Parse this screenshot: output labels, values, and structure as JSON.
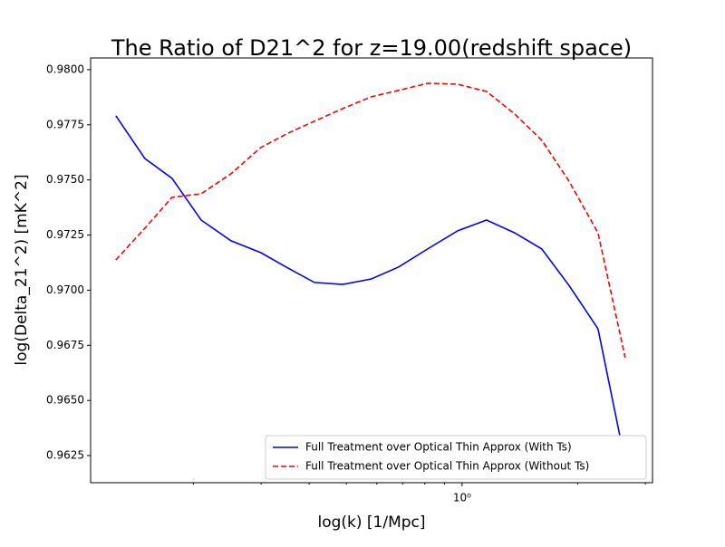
{
  "chart_data": {
    "type": "line",
    "title": "The Ratio of D21^2 for z=19.00(redshift space)",
    "x_label": "log(k) [1/Mpc]",
    "y_label": "log(Delta_21^2) [mK^2]",
    "x": [
      0.1256,
      0.1495,
      0.1759,
      0.2094,
      0.2505,
      0.2995,
      0.3526,
      0.4128,
      0.4887,
      0.5808,
      0.6839,
      0.8137,
      0.9732,
      1.158,
      1.37,
      1.612,
      1.897,
      2.258,
      2.658
    ],
    "series": [
      {
        "name": "Full Treatment over Optical Thin Approx (With Ts)",
        "color": "#0000ff",
        "linestyle": "solid",
        "values": [
          0.97791,
          0.97597,
          0.97507,
          0.97318,
          0.97224,
          0.9717,
          0.971,
          0.97035,
          0.97026,
          0.97051,
          0.97105,
          0.97187,
          0.97269,
          0.97318,
          0.9726,
          0.97187,
          0.97022,
          0.96825,
          0.96221
        ]
      },
      {
        "name": "Full Treatment over Optical Thin Approx (Without Ts)",
        "color": "#ff0000",
        "linestyle": "dashed",
        "values": [
          0.97137,
          0.97281,
          0.97421,
          0.97437,
          0.97528,
          0.97647,
          0.97712,
          0.97766,
          0.97823,
          0.97877,
          0.97906,
          0.97938,
          0.97934,
          0.97901,
          0.97799,
          0.9768,
          0.97495,
          0.9726,
          0.96694
        ]
      }
    ],
    "xscale": "log",
    "xlim": [
      0.108,
      3.13
    ],
    "xticks": [
      {
        "value": 1,
        "label": "10⁰"
      }
    ],
    "xminorticks": [
      0.2,
      0.3,
      0.4,
      0.5,
      0.6,
      0.7,
      0.8,
      0.9,
      2,
      3
    ],
    "ylim": [
      0.96127,
      0.98053
    ],
    "yticks": [
      {
        "value": 0.9625,
        "label": "0.9625"
      },
      {
        "value": 0.965,
        "label": "0.9650"
      },
      {
        "value": 0.9675,
        "label": "0.9675"
      },
      {
        "value": 0.97,
        "label": "0.9700"
      },
      {
        "value": 0.9725,
        "label": "0.9725"
      },
      {
        "value": 0.975,
        "label": "0.9750"
      },
      {
        "value": 0.9775,
        "label": "0.9775"
      },
      {
        "value": 0.98,
        "label": "0.9800"
      }
    ],
    "legend": "lower right"
  }
}
